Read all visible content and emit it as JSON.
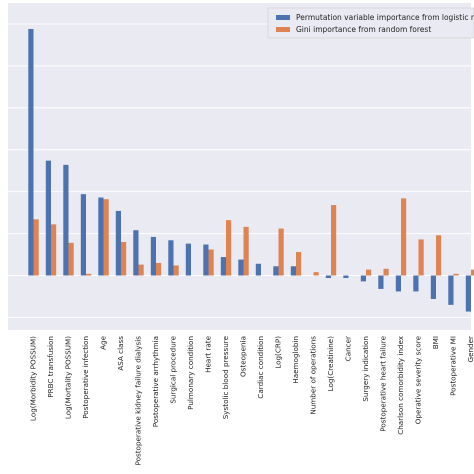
{
  "chart_data": {
    "type": "bar",
    "categories": [
      "Log(Morbidity POSSUM)",
      "PRBC transfusion",
      "Log(Mortality POSSUM)",
      "Postoperative infection",
      "Age",
      "ASA class",
      "Postoperative kidney failure dialysis",
      "Postoperative arrhythmia",
      "Surgical procedure",
      "Pulmonary condition",
      "Heart rate",
      "Systolic blood pressure",
      "Osteopenia",
      "Cardiac condition",
      "Log(CRP)",
      "Haemoglobin",
      "Number of operations",
      "Log(Creatinine)",
      "Cancer",
      "Surgery indication",
      "Postoperative heart failure",
      "Charlson comorbidity index",
      "Operative severity score",
      "BMI",
      "Postoperative MI",
      "Gender"
    ],
    "series": [
      {
        "name": "Permutation variable importance from logistic re",
        "color": "#4c72b0",
        "values": [
          0.294,
          0.137,
          0.132,
          0.097,
          0.093,
          0.077,
          0.054,
          0.046,
          0.042,
          0.038,
          0.037,
          0.022,
          0.019,
          0.014,
          0.011,
          0.011,
          0.0,
          -0.003,
          -0.003,
          -0.007,
          -0.016,
          -0.019,
          -0.019,
          -0.028,
          -0.035,
          -0.043
        ]
      },
      {
        "name": "Gini importance from random forest",
        "color": "#dd8452",
        "values": [
          0.067,
          0.061,
          0.039,
          0.002,
          0.091,
          0.04,
          0.013,
          0.015,
          0.012,
          0.0,
          0.031,
          0.066,
          0.058,
          0.0,
          0.056,
          0.028,
          0.004,
          0.084,
          0.0,
          0.007,
          0.008,
          0.092,
          0.043,
          0.048,
          0.002,
          0.007
        ]
      }
    ],
    "legend_position": "top-right",
    "grid": true,
    "ylim": [
      -0.065,
      0.325
    ],
    "yticks": [
      -0.05,
      0.0,
      0.05,
      0.1,
      0.15,
      0.2,
      0.25,
      0.3
    ],
    "background_color": "#eaeaf2"
  }
}
